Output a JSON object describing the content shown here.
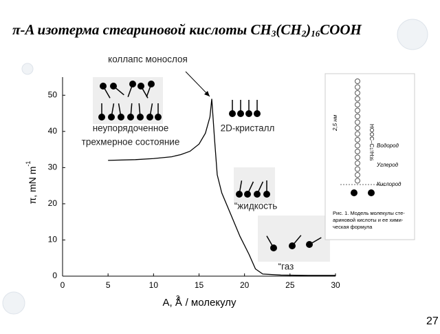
{
  "chart_data": {
    "type": "line",
    "title": [
      "π-A изотерма стеариновой кислоты CH",
      "3",
      "(CH",
      "2",
      ")",
      "16",
      "COOH"
    ],
    "x_label": [
      "A, Å",
      "2",
      " / молекулу"
    ],
    "y_label": [
      "π, mN m",
      "-1"
    ],
    "x": [
      5,
      8,
      10,
      12,
      13,
      14,
      15,
      15.7,
      16.2,
      16.4,
      16.7,
      17.0,
      17.5,
      18.5,
      19.5,
      20.5,
      21.2,
      22,
      24,
      27,
      30
    ],
    "values": [
      32,
      32.2,
      32.5,
      33,
      33.6,
      34.5,
      36.5,
      39.5,
      44,
      49,
      38,
      28,
      23,
      17,
      11,
      6,
      2,
      0.6,
      0.3,
      0.2,
      0.2
    ],
    "color": "#000000",
    "xlim": [
      0,
      30
    ],
    "xticks": [
      0,
      5,
      10,
      15,
      20,
      25,
      30
    ],
    "ylim": [
      0,
      55
    ],
    "yticks": [
      0,
      10,
      20,
      30,
      40,
      50
    ],
    "grid": false,
    "annotations": [
      "коллапс монослоя",
      "неупорядоченное",
      "трехмерное состояние",
      "2D-кристалл",
      "“жидкость",
      "“газ"
    ]
  },
  "figure": {
    "labels": [
      "HOOC–C",
      "17",
      "H",
      "35",
      "2,5 нм",
      "Водород",
      "Углерод",
      "Кислород"
    ],
    "caption": [
      "Рис. 1. Модель молекулы сте-",
      "ариновой кислоты и ее хими-",
      "ческая формула"
    ]
  },
  "page_number": "27"
}
